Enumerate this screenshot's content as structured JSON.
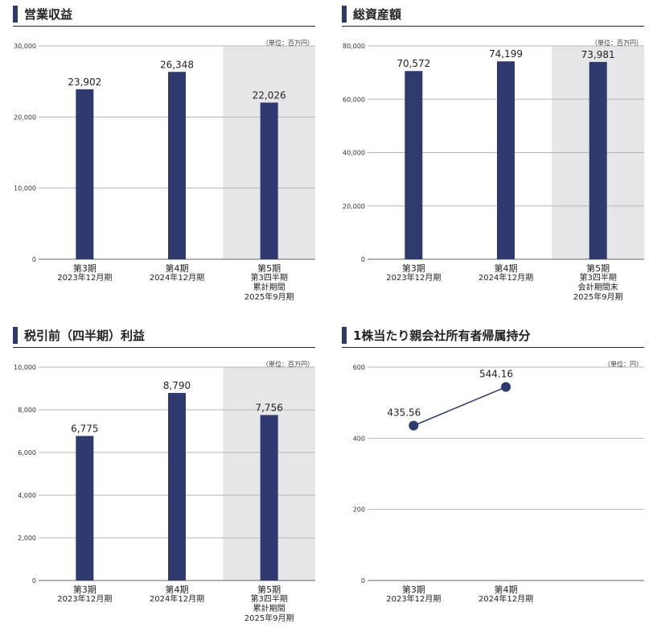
{
  "panels": [
    {
      "id": "operating-revenue",
      "title": "営業収益",
      "unit": "（単位：百万円）",
      "chart_data": {
        "type": "bar",
        "categories": [
          "第3期 2023年12月期",
          "第4期 2024年12月期",
          "第5期 第3四半期累計期間 2025年9月期"
        ],
        "values": [
          23902,
          26348,
          22026
        ],
        "value_labels": [
          "23,902",
          "26,348",
          "22,026"
        ],
        "ylim": [
          0,
          30000
        ],
        "yticks": [
          0,
          10000,
          20000,
          30000
        ],
        "ytick_labels": [
          "0",
          "10,000",
          "20,000",
          "30,000"
        ],
        "grid": true,
        "highlight_last_category": true
      },
      "xlabels": [
        {
          "period": "第3期",
          "lines": [
            "2023年12月期"
          ]
        },
        {
          "period": "第4期",
          "lines": [
            "2024年12月期"
          ]
        },
        {
          "period": "第5期",
          "lines": [
            "第3四半期",
            "累計期間",
            "2025年9月期"
          ]
        }
      ]
    },
    {
      "id": "total-assets",
      "title": "総資産額",
      "unit": "（単位：百万円）",
      "chart_data": {
        "type": "bar",
        "categories": [
          "第3期 2023年12月期",
          "第4期 2024年12月期",
          "第5期 第3四半期会計期間末 2025年9月期"
        ],
        "values": [
          70572,
          74199,
          73981
        ],
        "value_labels": [
          "70,572",
          "74,199",
          "73,981"
        ],
        "ylim": [
          0,
          80000
        ],
        "yticks": [
          0,
          20000,
          40000,
          60000,
          80000
        ],
        "ytick_labels": [
          "0",
          "20,000",
          "40,000",
          "60,000",
          "80,000"
        ],
        "grid": true,
        "highlight_last_category": true
      },
      "xlabels": [
        {
          "period": "第3期",
          "lines": [
            "2023年12月期"
          ]
        },
        {
          "period": "第4期",
          "lines": [
            "2024年12月期"
          ]
        },
        {
          "period": "第5期",
          "lines": [
            "第3四半期",
            "会計期間末",
            "2025年9月期"
          ]
        }
      ]
    },
    {
      "id": "pretax-income",
      "title": "税引前（四半期）利益",
      "unit": "（単位：百万円）",
      "chart_data": {
        "type": "bar",
        "categories": [
          "第3期 2023年12月期",
          "第4期 2024年12月期",
          "第5期 第3四半期累計期間 2025年9月期"
        ],
        "values": [
          6775,
          8790,
          7756
        ],
        "value_labels": [
          "6,775",
          "8,790",
          "7,756"
        ],
        "ylim": [
          0,
          10000
        ],
        "yticks": [
          0,
          2000,
          4000,
          6000,
          8000,
          10000
        ],
        "ytick_labels": [
          "0",
          "2,000",
          "4,000",
          "6,000",
          "8,000",
          "10,000"
        ],
        "grid": true,
        "highlight_last_category": true
      },
      "xlabels": [
        {
          "period": "第3期",
          "lines": [
            "2023年12月期"
          ]
        },
        {
          "period": "第4期",
          "lines": [
            "2024年12月期"
          ]
        },
        {
          "period": "第5期",
          "lines": [
            "第3四半期",
            "累計期間",
            "2025年9月期"
          ]
        }
      ]
    },
    {
      "id": "equity-per-share",
      "title": "1株当たり親会社所有者帰属持分",
      "unit": "（単位：円）",
      "chart_data": {
        "type": "line",
        "categories": [
          "第3期 2023年12月期",
          "第4期 2024年12月期"
        ],
        "values": [
          435.56,
          544.16
        ],
        "value_labels": [
          "435.56",
          "544.16"
        ],
        "ylim": [
          0,
          600
        ],
        "yticks": [
          0,
          200,
          400,
          600
        ],
        "ytick_labels": [
          "0",
          "200",
          "400",
          "600"
        ],
        "grid": true,
        "highlight_last_category": false
      },
      "xlabels": [
        {
          "period": "第3期",
          "lines": [
            "2023年12月期"
          ]
        },
        {
          "period": "第4期",
          "lines": [
            "2024年12月期"
          ]
        }
      ]
    }
  ],
  "colors": {
    "bar": "#2e3a6e",
    "highlight_bg": "#e6e6e8",
    "grid": "#b5b5b5",
    "axis": "#666666",
    "title_mark": "#2e3a6e"
  }
}
